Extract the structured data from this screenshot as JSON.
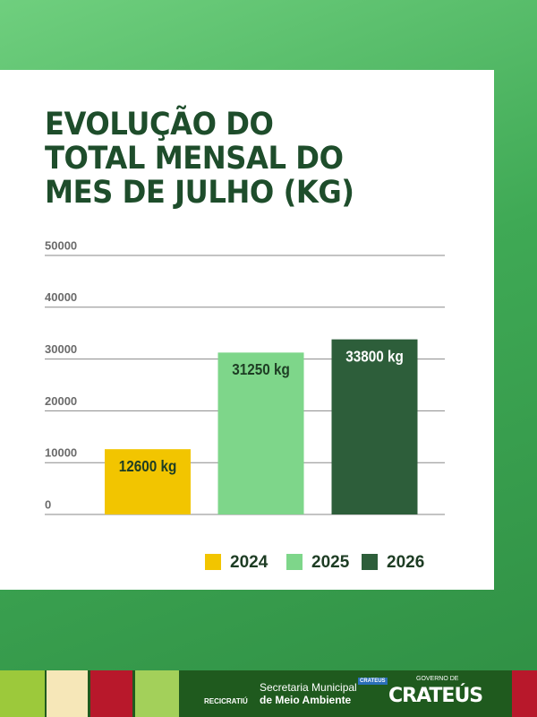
{
  "chart_data": {
    "type": "bar",
    "title": "EVOLUÇÃO DO TOTAL MENSAL DO MES DE JULHO (KG)",
    "categories": [
      "2024",
      "2025",
      "2026"
    ],
    "values": [
      12600,
      31250,
      33800
    ],
    "value_labels": [
      "12600 kg",
      "31250 kg",
      "33800 kg"
    ],
    "colors": [
      "#f2c500",
      "#7ed68a",
      "#2d5e3a"
    ],
    "label_colors": [
      "#1e3d24",
      "#1e3d24",
      "#ffffff"
    ],
    "ylim": [
      0,
      50000
    ],
    "yticks": [
      0,
      10000,
      20000,
      30000,
      40000,
      50000
    ],
    "grid": true
  },
  "footer": {
    "recycle": "RECICRATIÚ",
    "secretaria_line1": "Secretaria Municipal",
    "secretaria_line2": "de Meio Ambiente",
    "badge": "CRATEUS",
    "governo": "GOVERNO DE",
    "city": "CRATEÚS"
  }
}
